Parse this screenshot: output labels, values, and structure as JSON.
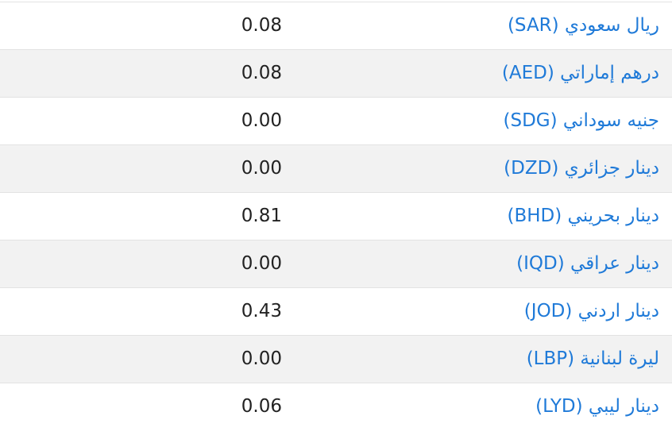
{
  "table": {
    "rows": [
      [
        "ريال سعودي (SAR)",
        "0.08"
      ],
      [
        "درهم إماراتي (AED)",
        "0.08"
      ],
      [
        "جنيه سوداني (SDG)",
        "0.00"
      ],
      [
        "دينار جزائري (DZD)",
        "0.00"
      ],
      [
        "دينار بحريني (BHD)",
        "0.81"
      ],
      [
        "دينار عراقي (IQD)",
        "0.00"
      ],
      [
        "دينار اردني (JOD)",
        "0.43"
      ],
      [
        "ليرة لبنانية (LBP)",
        "0.00"
      ],
      [
        "دينار ليبي (LYD)",
        "0.06"
      ]
    ]
  }
}
